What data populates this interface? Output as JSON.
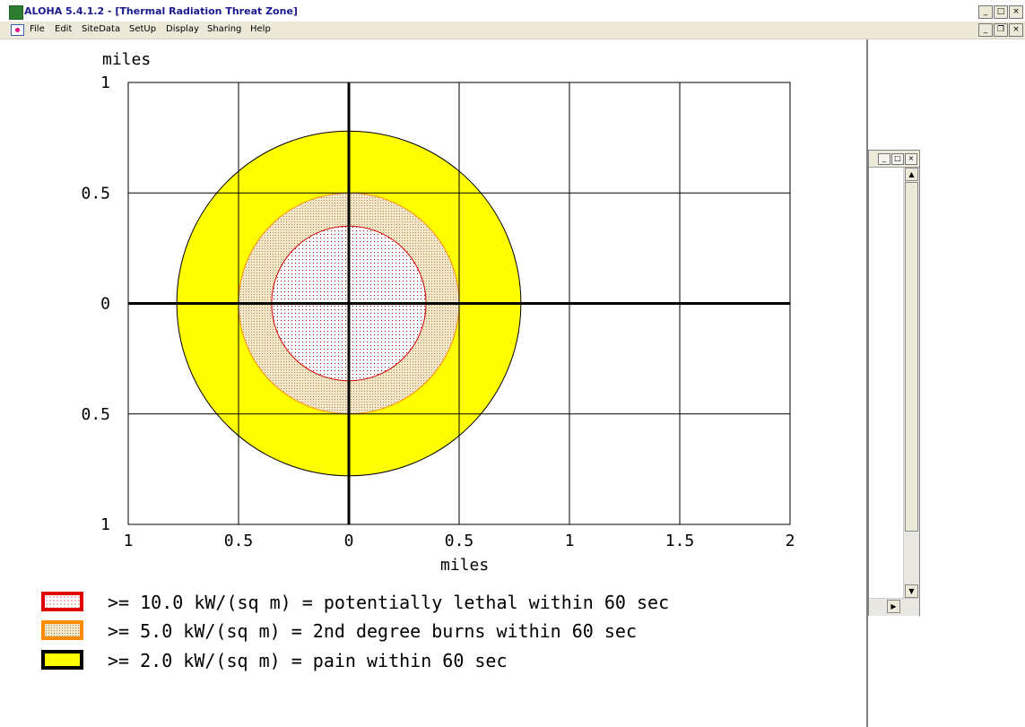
{
  "window": {
    "title": "ALOHA 5.4.1.2 - [Thermal Radiation Threat Zone]"
  },
  "menu": [
    "File",
    "Edit",
    "SiteData",
    "SetUp",
    "Display",
    "Sharing",
    "Help"
  ],
  "icons": {
    "app": "aloha-app-icon",
    "doc": "document-icon"
  },
  "chart_data": {
    "type": "area",
    "title": "",
    "xlabel": "miles",
    "ylabel": "miles",
    "xlim": [
      -1,
      2
    ],
    "ylim": [
      -1,
      1
    ],
    "x_tick_values": [
      -1,
      -0.5,
      0,
      0.5,
      1,
      1.5,
      2
    ],
    "x_tick_labels": [
      "1",
      "0.5",
      "0",
      "0.5",
      "1",
      "1.5",
      "2"
    ],
    "y_tick_values": [
      1,
      0.5,
      0,
      -0.5,
      -1
    ],
    "y_tick_labels": [
      "1",
      "0.5",
      "0",
      "0.5",
      "1"
    ],
    "grid": true,
    "zones": [
      {
        "radius": 0.78,
        "fill": "#ffff00",
        "stroke": "#000000",
        "pattern": "solid"
      },
      {
        "radius": 0.5,
        "fill": "#e8dcc0",
        "stroke": "#ff8c00",
        "pattern": "dots-orange"
      },
      {
        "radius": 0.35,
        "fill": "#ffffff",
        "stroke": "#d00000",
        "pattern": "dots-red"
      }
    ]
  },
  "legend": [
    {
      "text": ">= 10.0 kW/(sq m) = potentially lethal within 60 sec",
      "border": "#e00000",
      "fill": "red-dots"
    },
    {
      "text": ">= 5.0 kW/(sq m) = 2nd degree burns within 60 sec",
      "border": "#ff8c00",
      "fill": "tan-dots"
    },
    {
      "text": ">= 2.0 kW/(sq m) = pain within 60 sec",
      "border": "#000000",
      "fill": "#ffff00"
    }
  ]
}
